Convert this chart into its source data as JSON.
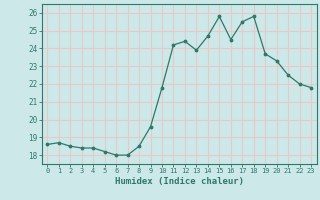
{
  "x": [
    0,
    1,
    2,
    3,
    4,
    5,
    6,
    7,
    8,
    9,
    10,
    11,
    12,
    13,
    14,
    15,
    16,
    17,
    18,
    19,
    20,
    21,
    22,
    23
  ],
  "y": [
    18.6,
    18.7,
    18.5,
    18.4,
    18.4,
    18.2,
    18.0,
    18.0,
    18.5,
    19.6,
    21.8,
    24.2,
    24.4,
    23.9,
    24.7,
    25.8,
    24.5,
    25.5,
    25.8,
    23.7,
    23.3,
    22.5,
    22.0,
    21.8
  ],
  "xlabel": "Humidex (Indice chaleur)",
  "ylim": [
    17.5,
    26.5
  ],
  "xlim": [
    -0.5,
    23.5
  ],
  "yticks": [
    18,
    19,
    20,
    21,
    22,
    23,
    24,
    25,
    26
  ],
  "xticks": [
    0,
    1,
    2,
    3,
    4,
    5,
    6,
    7,
    8,
    9,
    10,
    11,
    12,
    13,
    14,
    15,
    16,
    17,
    18,
    19,
    20,
    21,
    22,
    23
  ],
  "line_color": "#2d7a6b",
  "marker_color": "#2d7a6b",
  "bg_color": "#cce8e8",
  "grid_color": "#e8c8c8",
  "axis_color": "#2d7a6b",
  "label_color": "#2d7a6b",
  "tick_color": "#2d7a6b"
}
